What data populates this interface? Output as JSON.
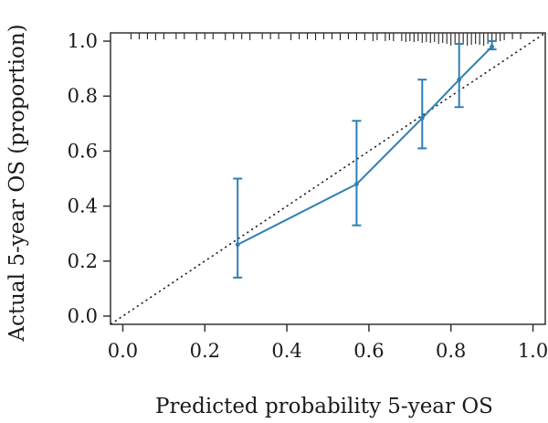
{
  "chart_data": {
    "type": "line",
    "title": "",
    "xlabel": "Predicted probability 5-year OS",
    "ylabel": "Actual 5-year OS (proportion)",
    "xlim": [
      -0.03,
      1.03
    ],
    "ylim": [
      -0.03,
      1.03
    ],
    "x_ticks": [
      0.0,
      0.2,
      0.4,
      0.6,
      0.8,
      1.0
    ],
    "x_tick_labels": [
      "0.0",
      "0.2",
      "0.4",
      "0.6",
      "0.8",
      "1.0"
    ],
    "y_ticks": [
      0.0,
      0.2,
      0.4,
      0.6,
      0.8,
      1.0
    ],
    "y_tick_labels": [
      "0.0",
      "0.2",
      "0.4",
      "0.6",
      "0.8",
      "1.0"
    ],
    "grid": false,
    "legend": "none",
    "colors": {
      "series": "#2e7fb4",
      "reference": "#222222",
      "axis": "#333333"
    },
    "series": [
      {
        "x": [
          0.28,
          0.57,
          0.73,
          0.82,
          0.9
        ],
        "y": [
          0.26,
          0.48,
          0.72,
          0.86,
          0.98
        ],
        "lower": [
          0.14,
          0.33,
          0.61,
          0.76,
          0.97
        ],
        "upper": [
          0.5,
          0.71,
          0.86,
          0.99,
          1.0
        ]
      }
    ],
    "reference_line": {
      "style": "dotted",
      "x": [
        -0.03,
        1.03
      ],
      "y": [
        -0.03,
        1.03
      ]
    },
    "rug": {
      "position": "top",
      "x": [
        0.02,
        0.04,
        0.06,
        0.08,
        0.1,
        0.13,
        0.15,
        0.18,
        0.2,
        0.22,
        0.25,
        0.27,
        0.29,
        0.31,
        0.34,
        0.36,
        0.38,
        0.41,
        0.43,
        0.45,
        0.47,
        0.49,
        0.51,
        0.53,
        0.55,
        0.57,
        0.59,
        0.61,
        0.62,
        0.64,
        0.65,
        0.66,
        0.68,
        0.69,
        0.7,
        0.71,
        0.72,
        0.73,
        0.74,
        0.75,
        0.76,
        0.77,
        0.78,
        0.79,
        0.8,
        0.81,
        0.82,
        0.83,
        0.84,
        0.85,
        0.86,
        0.87,
        0.88,
        0.89,
        0.9,
        0.91,
        0.92,
        0.93,
        0.95,
        0.97
      ],
      "heights": [
        0.3,
        0.3,
        0.3,
        0.4,
        0.3,
        0.3,
        0.3,
        0.4,
        0.3,
        0.3,
        0.4,
        0.3,
        0.3,
        0.4,
        0.3,
        0.3,
        0.3,
        0.4,
        0.3,
        0.3,
        0.4,
        0.3,
        0.3,
        0.4,
        0.3,
        0.4,
        0.4,
        0.5,
        0.4,
        0.5,
        0.4,
        0.5,
        0.5,
        0.6,
        0.5,
        0.6,
        0.5,
        0.7,
        0.6,
        0.7,
        0.6,
        0.8,
        0.7,
        0.8,
        1.0,
        0.8,
        0.9,
        0.8,
        1.0,
        0.9,
        0.8,
        0.9,
        1.0,
        0.8,
        0.7,
        0.6,
        0.5,
        0.4,
        0.3,
        0.3
      ]
    }
  }
}
